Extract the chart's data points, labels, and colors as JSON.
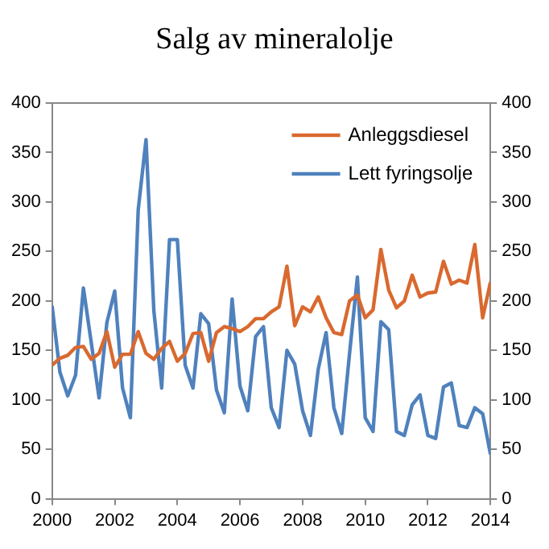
{
  "chart_data": {
    "type": "line",
    "title": "Salg av mineralolje",
    "x": [
      2000,
      2000.25,
      2000.5,
      2000.75,
      2001,
      2001.25,
      2001.5,
      2001.75,
      2002,
      2002.25,
      2002.5,
      2002.75,
      2003,
      2003.25,
      2003.5,
      2003.75,
      2004,
      2004.25,
      2004.5,
      2004.75,
      2005,
      2005.25,
      2005.5,
      2005.75,
      2006,
      2006.25,
      2006.5,
      2006.75,
      2007,
      2007.25,
      2007.5,
      2007.75,
      2008,
      2008.25,
      2008.5,
      2008.75,
      2009,
      2009.25,
      2009.5,
      2009.75,
      2010,
      2010.25,
      2010.5,
      2010.75,
      2011,
      2011.25,
      2011.5,
      2011.75,
      2012,
      2012.25,
      2012.5,
      2012.75,
      2013,
      2013.25,
      2013.5,
      2013.75,
      2014
    ],
    "series": [
      {
        "name": "Anleggsdiesel",
        "color": "#d9692f",
        "values": [
          135,
          142,
          145,
          153,
          154,
          141,
          147,
          169,
          133,
          146,
          146,
          169,
          147,
          141,
          152,
          159,
          139,
          147,
          167,
          168,
          139,
          168,
          174,
          172,
          169,
          174,
          182,
          182,
          189,
          194,
          235,
          175,
          194,
          189,
          204,
          183,
          168,
          166,
          200,
          206,
          183,
          191,
          252,
          211,
          193,
          200,
          226,
          204,
          208,
          209,
          240,
          217,
          221,
          218,
          257,
          183,
          219
        ]
      },
      {
        "name": "Lett fyringsolje",
        "color": "#4f81bd",
        "values": [
          195,
          128,
          104,
          125,
          213,
          158,
          102,
          178,
          210,
          112,
          82,
          292,
          363,
          190,
          112,
          262,
          262,
          135,
          112,
          187,
          177,
          110,
          87,
          202,
          114,
          89,
          164,
          174,
          92,
          72,
          150,
          136,
          89,
          64,
          131,
          168,
          92,
          66,
          147,
          224,
          82,
          68,
          179,
          171,
          68,
          64,
          95,
          105,
          64,
          61,
          113,
          117,
          74,
          72,
          92,
          86,
          45
        ]
      }
    ],
    "xlim": [
      2000,
      2014
    ],
    "xticks": [
      2000,
      2002,
      2004,
      2006,
      2008,
      2010,
      2012,
      2014
    ],
    "ylim": [
      0,
      400
    ],
    "yticks": [
      0,
      50,
      100,
      150,
      200,
      250,
      300,
      350,
      400
    ],
    "y2lim": [
      0,
      400
    ],
    "y2ticks": [
      0,
      50,
      100,
      150,
      200,
      250,
      300,
      350,
      400
    ],
    "legend": "top right",
    "marker": "none",
    "line_style": "solid",
    "grid": false
  }
}
